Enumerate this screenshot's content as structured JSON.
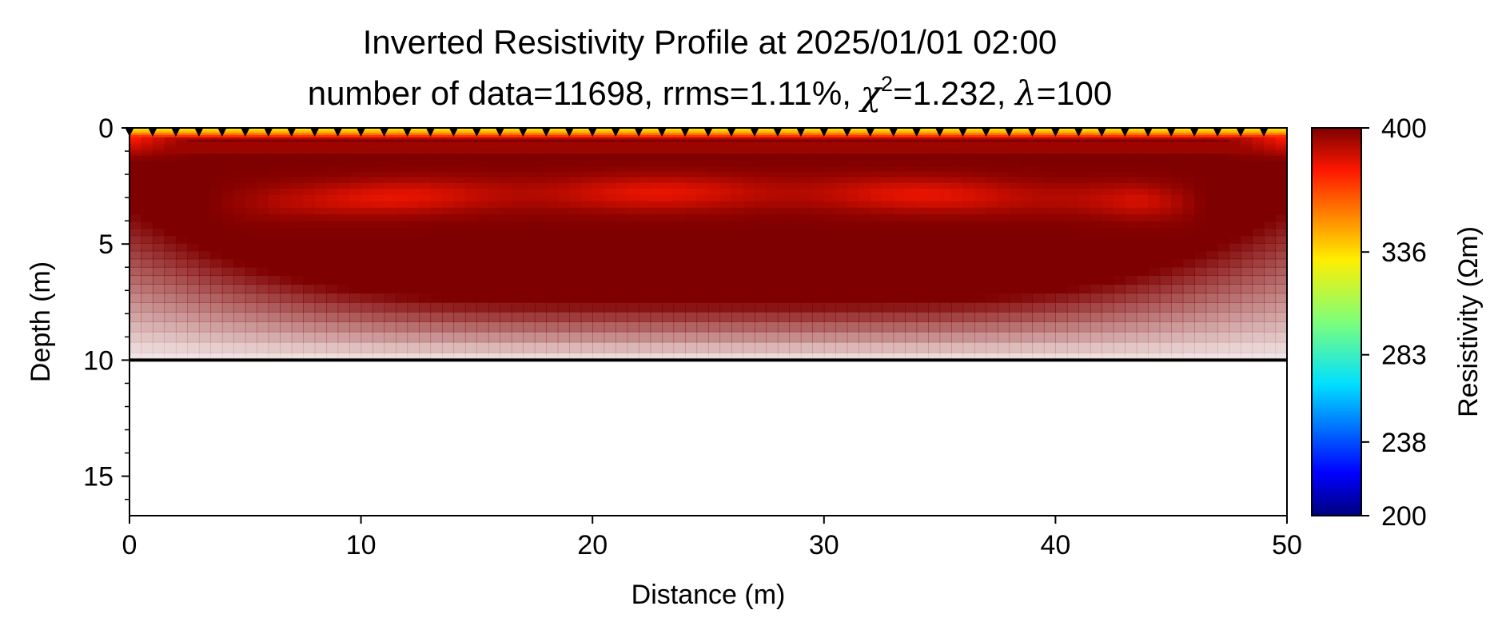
{
  "chart_data": {
    "type": "heatmap",
    "title": "Inverted Resistivity Profile at 2025/01/01 02:00",
    "subtitle": {
      "prefix": "number of data=11698, rrms=1.11%, ",
      "chi_symbol": "χ",
      "chi_exponent": "2",
      "chi_value": "=1.232, ",
      "lambda_symbol": "λ",
      "lambda_value": "=100"
    },
    "xlabel": "Distance (m)",
    "ylabel": "Depth (m)",
    "xlim": [
      0,
      50
    ],
    "ylim": [
      16.7,
      0
    ],
    "y_inverted": true,
    "x_ticks": [
      "0",
      "10",
      "20",
      "30",
      "40",
      "50"
    ],
    "y_ticks": [
      "0",
      "5",
      "10",
      "15"
    ],
    "colorbar": {
      "label": "Resistivity (Ωm)",
      "range": [
        200,
        400
      ],
      "ticks": [
        "200",
        "238",
        "283",
        "336",
        "400"
      ],
      "tick_values": [
        200,
        238,
        283,
        336,
        400
      ],
      "colormap": "jet"
    },
    "model_bottom_depth": 10,
    "electrodes": {
      "start": 0,
      "end": 49,
      "spacing": 1,
      "marker": "black-triangle"
    },
    "features": [
      {
        "name": "near-surface zone",
        "depth_range": [
          0,
          0.7
        ],
        "resistivity": 345
      },
      {
        "name": "main body",
        "depth_range": [
          0.7,
          8
        ],
        "resistivity": 400
      },
      {
        "name": "lower-resistivity band",
        "depth_center": 2.8,
        "x_range": [
          4,
          47
        ],
        "resistivity": 385
      }
    ],
    "grid": false,
    "legend": "colorbar-right"
  }
}
